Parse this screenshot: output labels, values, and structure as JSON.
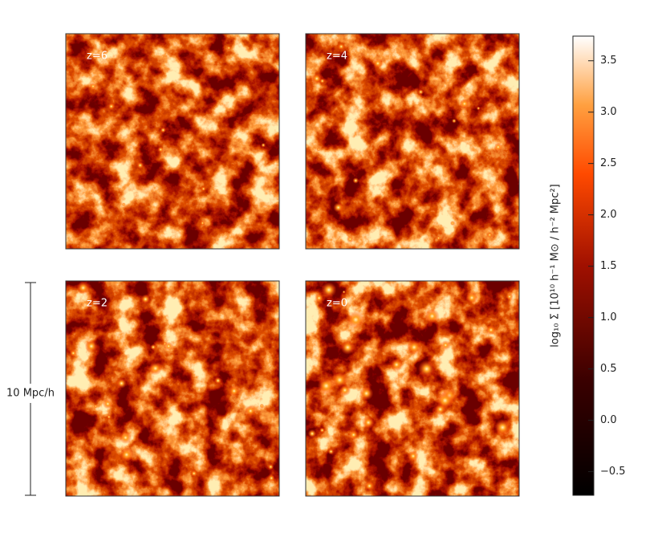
{
  "panels": [
    {
      "label": "z=6"
    },
    {
      "label": "z=4"
    },
    {
      "label": "z=2"
    },
    {
      "label": "z=0"
    }
  ],
  "scale_bar": {
    "label": "10 Mpc/h"
  },
  "colorbar": {
    "label": "log₁₀ Σ [10¹⁰ h⁻¹ M⊙ / h⁻² Mpc²]",
    "lim": [
      -0.73,
      3.74
    ],
    "ticks": [
      {
        "value": -0.5,
        "label": "−0.5"
      },
      {
        "value": 0,
        "label": "0.0"
      },
      {
        "value": 0.5,
        "label": "0.5"
      },
      {
        "value": 1,
        "label": "1.0"
      },
      {
        "value": 1.5,
        "label": "1.5"
      },
      {
        "value": 2,
        "label": "2.0"
      },
      {
        "value": 2.5,
        "label": "2.5"
      },
      {
        "value": 3,
        "label": "3.0"
      },
      {
        "value": 3.5,
        "label": "3.5"
      }
    ]
  }
}
